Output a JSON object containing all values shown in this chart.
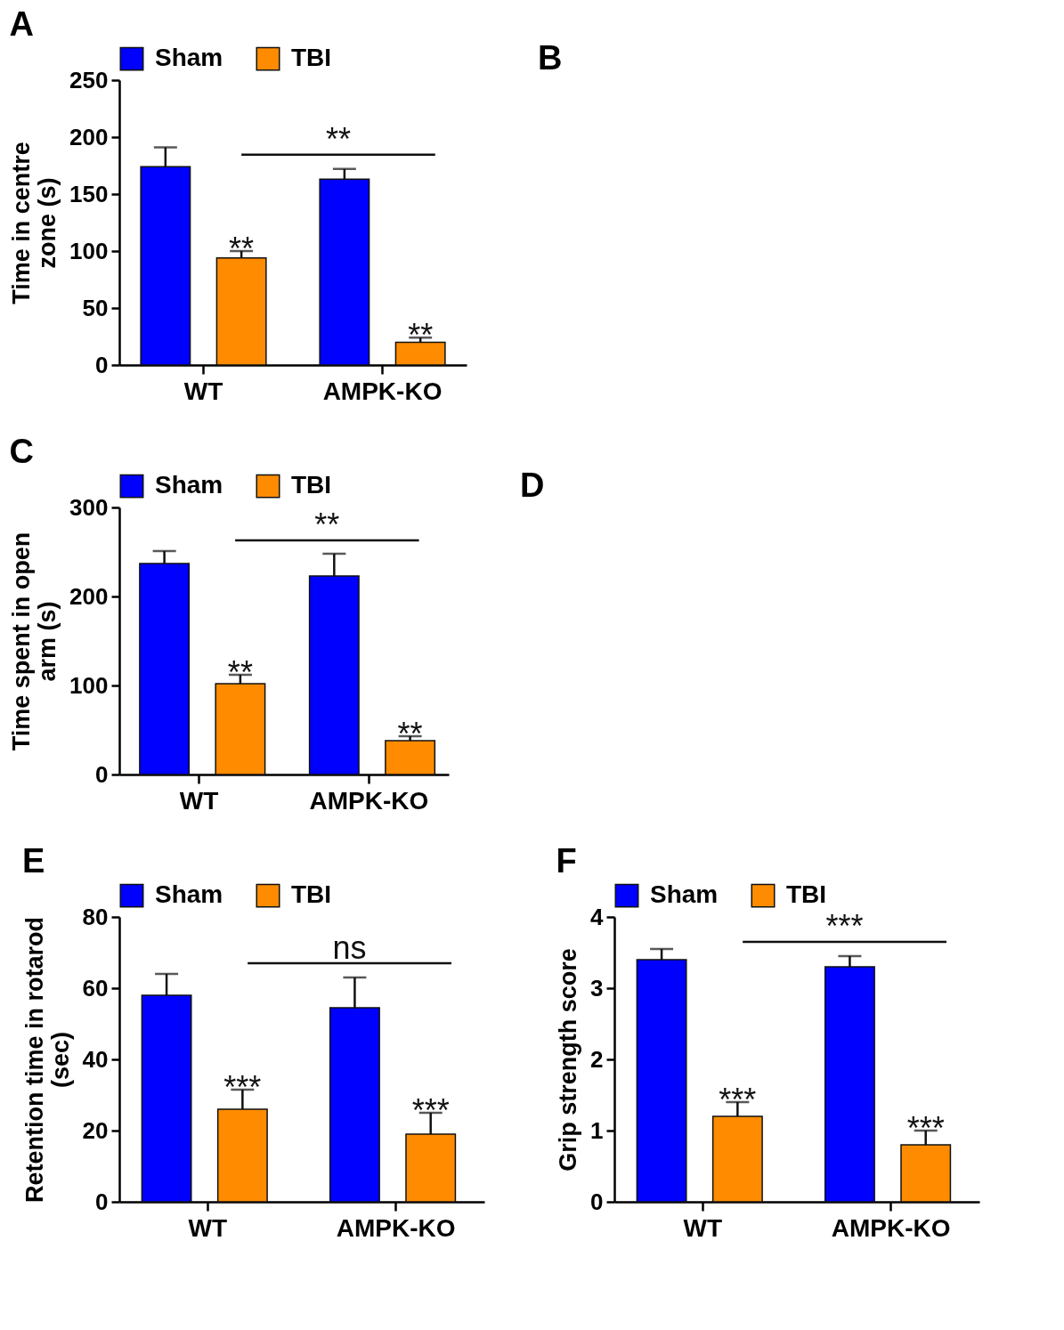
{
  "chart_data": [
    {
      "type": "bar",
      "title": "A",
      "categories": [
        "WT",
        "AMPK-KO"
      ],
      "ylabel": "Time in centre zone (s)",
      "ylim": [
        0,
        250
      ],
      "yticks": [
        0,
        50,
        100,
        150,
        200,
        250
      ],
      "legend": "top",
      "annotations": [
        "**"
      ],
      "series": [
        {
          "name": "Sham",
          "color": "#0000ff",
          "values": [
            174,
            163
          ],
          "errors": [
            [
              174,
              191
            ],
            [
              163,
              172
            ]
          ]
        },
        {
          "name": "TBI",
          "color": "#ff8c00",
          "values": [
            94,
            20
          ],
          "errors": [
            [
              94,
              100
            ],
            [
              20,
              24
            ]
          ],
          "value_labels": [
            "**",
            "**"
          ]
        }
      ]
    },
    {
      "type": "other",
      "title": "B"
    },
    {
      "type": "bar",
      "title": "C",
      "categories": [
        "WT",
        "AMPK-KO"
      ],
      "ylabel": "Time spent in open arm (s)",
      "ylim": [
        0,
        300
      ],
      "yticks": [
        0,
        100,
        200,
        300
      ],
      "legend": "top",
      "annotations": [
        "**"
      ],
      "series": [
        {
          "name": "Sham",
          "color": "#0000ff",
          "values": [
            237,
            223
          ],
          "errors": [
            [
              237,
              251
            ],
            [
              223,
              248
            ]
          ]
        },
        {
          "name": "TBI",
          "color": "#ff8c00",
          "values": [
            102,
            38
          ],
          "errors": [
            [
              102,
              112
            ],
            [
              38,
              43
            ]
          ],
          "value_labels": [
            "**",
            "**"
          ]
        }
      ]
    },
    {
      "type": "other",
      "title": "D"
    },
    {
      "type": "bar",
      "title": "E",
      "categories": [
        "WT",
        "AMPK-KO"
      ],
      "ylabel": "Retention time in rotarod (sec)",
      "ylim": [
        0,
        80
      ],
      "yticks": [
        0,
        20,
        40,
        60,
        80
      ],
      "legend": "top",
      "annotations": [
        "ns"
      ],
      "series": [
        {
          "name": "Sham",
          "color": "#0000ff",
          "values": [
            58,
            54.5
          ],
          "errors": [
            [
              58,
              64
            ],
            [
              54.5,
              63
            ]
          ]
        },
        {
          "name": "TBI",
          "color": "#ff8c00",
          "values": [
            26,
            19
          ],
          "errors": [
            [
              26,
              31.5
            ],
            [
              19,
              25
            ]
          ],
          "value_labels": [
            "***",
            "***"
          ]
        }
      ]
    },
    {
      "type": "bar",
      "title": "F",
      "categories": [
        "WT",
        "AMPK-KO"
      ],
      "ylabel": "Grip strength score",
      "ylim": [
        0,
        4
      ],
      "yticks": [
        0,
        1,
        2,
        3,
        4
      ],
      "legend": "top",
      "annotations": [
        "***"
      ],
      "series": [
        {
          "name": "Sham",
          "color": "#0000ff",
          "values": [
            3.4,
            3.3
          ],
          "errors": [
            [
              3.4,
              3.55
            ],
            [
              3.3,
              3.45
            ]
          ]
        },
        {
          "name": "TBI",
          "color": "#ff8c00",
          "values": [
            1.2,
            0.8
          ],
          "errors": [
            [
              1.2,
              1.4
            ],
            [
              0.8,
              1.0
            ]
          ],
          "value_labels": [
            "***",
            "***"
          ]
        }
      ]
    }
  ]
}
